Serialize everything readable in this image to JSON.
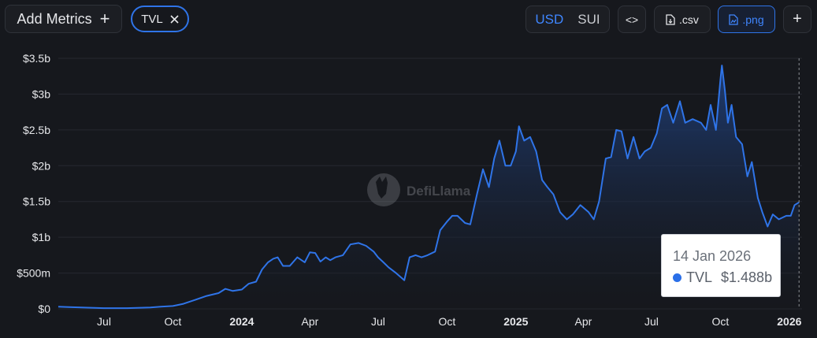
{
  "toolbar": {
    "add_metrics_label": "Add Metrics",
    "tvl_chip_label": "TVL",
    "currency_usd": "USD",
    "currency_sui": "SUI",
    "embed_label": "<>",
    "csv_label": ".csv",
    "png_label": ".png",
    "add_label": "+"
  },
  "watermark": {
    "text": "DefiLlama"
  },
  "tooltip": {
    "date": "14 Jan 2026",
    "series": "TVL",
    "value": "$1.488b"
  },
  "colors": {
    "line": "#2f74e8",
    "accent": "#3f86ff",
    "background": "#16181d"
  },
  "chart_data": {
    "type": "area",
    "title": "",
    "xlabel": "",
    "ylabel": "",
    "ylim": [
      0,
      3.5
    ],
    "y_ticks": [
      {
        "v": 0,
        "label": "$0"
      },
      {
        "v": 0.5,
        "label": "$500m"
      },
      {
        "v": 1,
        "label": "$1b"
      },
      {
        "v": 1.5,
        "label": "$1.5b"
      },
      {
        "v": 2,
        "label": "$2b"
      },
      {
        "v": 2.5,
        "label": "$2.5b"
      },
      {
        "v": 3,
        "label": "$3b"
      },
      {
        "v": 3.5,
        "label": "$3.5b"
      }
    ],
    "x_ticks": [
      {
        "date": "2023-07-01",
        "label": "Jul",
        "bold": false
      },
      {
        "date": "2023-10-01",
        "label": "Oct",
        "bold": false
      },
      {
        "date": "2024-01-01",
        "label": "2024",
        "bold": true
      },
      {
        "date": "2024-04-01",
        "label": "Apr",
        "bold": false
      },
      {
        "date": "2024-07-01",
        "label": "Jul",
        "bold": false
      },
      {
        "date": "2024-10-01",
        "label": "Oct",
        "bold": false
      },
      {
        "date": "2025-01-01",
        "label": "2025",
        "bold": true
      },
      {
        "date": "2025-04-01",
        "label": "Apr",
        "bold": false
      },
      {
        "date": "2025-07-01",
        "label": "Jul",
        "bold": false
      },
      {
        "date": "2025-10-01",
        "label": "Oct",
        "bold": false
      },
      {
        "date": "2026-01-01",
        "label": "2026",
        "bold": true
      }
    ],
    "series": [
      {
        "name": "TVL",
        "points": [
          [
            "2023-05-01",
            0.03
          ],
          [
            "2023-05-15",
            0.025
          ],
          [
            "2023-06-01",
            0.02
          ],
          [
            "2023-07-01",
            0.01
          ],
          [
            "2023-08-01",
            0.01
          ],
          [
            "2023-09-01",
            0.02
          ],
          [
            "2023-09-15",
            0.03
          ],
          [
            "2023-10-01",
            0.04
          ],
          [
            "2023-10-15",
            0.07
          ],
          [
            "2023-11-01",
            0.13
          ],
          [
            "2023-11-15",
            0.18
          ],
          [
            "2023-12-01",
            0.22
          ],
          [
            "2023-12-10",
            0.28
          ],
          [
            "2023-12-20",
            0.25
          ],
          [
            "2024-01-01",
            0.27
          ],
          [
            "2024-01-10",
            0.35
          ],
          [
            "2024-01-20",
            0.38
          ],
          [
            "2024-01-28",
            0.55
          ],
          [
            "2024-02-05",
            0.65
          ],
          [
            "2024-02-12",
            0.7
          ],
          [
            "2024-02-18",
            0.72
          ],
          [
            "2024-02-25",
            0.6
          ],
          [
            "2024-03-05",
            0.6
          ],
          [
            "2024-03-15",
            0.72
          ],
          [
            "2024-03-25",
            0.65
          ],
          [
            "2024-04-01",
            0.79
          ],
          [
            "2024-04-08",
            0.78
          ],
          [
            "2024-04-15",
            0.66
          ],
          [
            "2024-04-22",
            0.72
          ],
          [
            "2024-04-28",
            0.68
          ],
          [
            "2024-05-05",
            0.72
          ],
          [
            "2024-05-15",
            0.75
          ],
          [
            "2024-05-25",
            0.9
          ],
          [
            "2024-06-05",
            0.92
          ],
          [
            "2024-06-15",
            0.88
          ],
          [
            "2024-06-25",
            0.8
          ],
          [
            "2024-07-01",
            0.72
          ],
          [
            "2024-07-08",
            0.65
          ],
          [
            "2024-07-15",
            0.58
          ],
          [
            "2024-07-25",
            0.5
          ],
          [
            "2024-08-05",
            0.4
          ],
          [
            "2024-08-12",
            0.72
          ],
          [
            "2024-08-20",
            0.75
          ],
          [
            "2024-08-28",
            0.72
          ],
          [
            "2024-09-05",
            0.75
          ],
          [
            "2024-09-15",
            0.8
          ],
          [
            "2024-09-22",
            1.1
          ],
          [
            "2024-10-01",
            1.22
          ],
          [
            "2024-10-08",
            1.3
          ],
          [
            "2024-10-15",
            1.3
          ],
          [
            "2024-10-25",
            1.2
          ],
          [
            "2024-11-01",
            1.18
          ],
          [
            "2024-11-10",
            1.6
          ],
          [
            "2024-11-18",
            1.95
          ],
          [
            "2024-11-26",
            1.7
          ],
          [
            "2024-12-03",
            2.1
          ],
          [
            "2024-12-10",
            2.35
          ],
          [
            "2024-12-18",
            2.0
          ],
          [
            "2024-12-25",
            2.0
          ],
          [
            "2025-01-01",
            2.2
          ],
          [
            "2025-01-05",
            2.55
          ],
          [
            "2025-01-12",
            2.35
          ],
          [
            "2025-01-20",
            2.4
          ],
          [
            "2025-01-28",
            2.2
          ],
          [
            "2025-02-05",
            1.8
          ],
          [
            "2025-02-12",
            1.7
          ],
          [
            "2025-02-20",
            1.6
          ],
          [
            "2025-03-01",
            1.35
          ],
          [
            "2025-03-10",
            1.25
          ],
          [
            "2025-03-18",
            1.32
          ],
          [
            "2025-03-28",
            1.45
          ],
          [
            "2025-04-08",
            1.35
          ],
          [
            "2025-04-15",
            1.25
          ],
          [
            "2025-04-22",
            1.5
          ],
          [
            "2025-05-01",
            2.1
          ],
          [
            "2025-05-08",
            2.12
          ],
          [
            "2025-05-15",
            2.5
          ],
          [
            "2025-05-22",
            2.48
          ],
          [
            "2025-05-30",
            2.1
          ],
          [
            "2025-06-07",
            2.4
          ],
          [
            "2025-06-15",
            2.1
          ],
          [
            "2025-06-22",
            2.2
          ],
          [
            "2025-06-30",
            2.25
          ],
          [
            "2025-07-08",
            2.45
          ],
          [
            "2025-07-15",
            2.8
          ],
          [
            "2025-07-22",
            2.85
          ],
          [
            "2025-07-30",
            2.6
          ],
          [
            "2025-08-08",
            2.9
          ],
          [
            "2025-08-15",
            2.6
          ],
          [
            "2025-08-25",
            2.65
          ],
          [
            "2025-09-05",
            2.6
          ],
          [
            "2025-09-12",
            2.5
          ],
          [
            "2025-09-18",
            2.85
          ],
          [
            "2025-09-25",
            2.5
          ],
          [
            "2025-10-01",
            3.2
          ],
          [
            "2025-10-03",
            3.4
          ],
          [
            "2025-10-07",
            3.05
          ],
          [
            "2025-10-11",
            2.6
          ],
          [
            "2025-10-16",
            2.85
          ],
          [
            "2025-10-22",
            2.4
          ],
          [
            "2025-10-30",
            2.3
          ],
          [
            "2025-11-06",
            1.85
          ],
          [
            "2025-11-12",
            2.05
          ],
          [
            "2025-11-20",
            1.55
          ],
          [
            "2025-11-26",
            1.35
          ],
          [
            "2025-12-03",
            1.15
          ],
          [
            "2025-12-10",
            1.32
          ],
          [
            "2025-12-18",
            1.25
          ],
          [
            "2025-12-28",
            1.3
          ],
          [
            "2026-01-03",
            1.3
          ],
          [
            "2026-01-08",
            1.45
          ],
          [
            "2026-01-14",
            1.488
          ]
        ]
      }
    ],
    "grid": "horizontal",
    "legend": "none"
  }
}
